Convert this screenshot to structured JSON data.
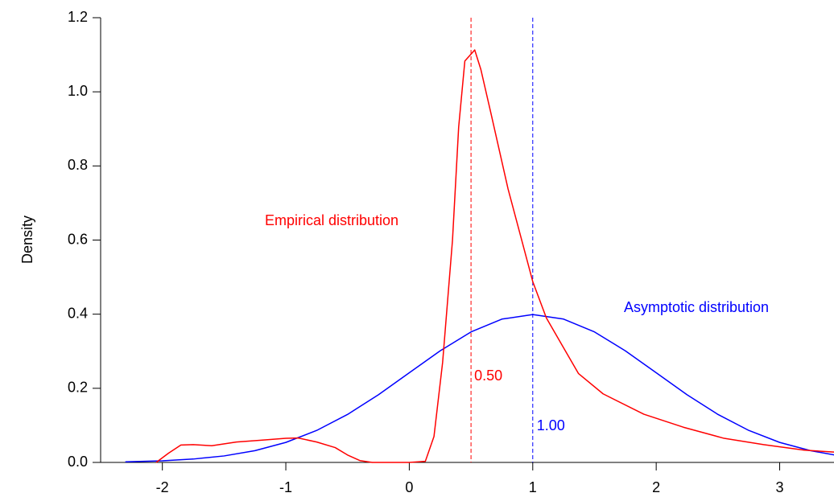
{
  "chart_data": {
    "type": "line",
    "y_label": "Density",
    "xlim": [
      -2.5,
      3.44
    ],
    "ylim": [
      0,
      1.2
    ],
    "xticks": [
      -2,
      -1,
      0,
      1,
      2,
      3
    ],
    "yticks": [
      {
        "value": 0,
        "label": "0.0"
      },
      0.2,
      0.4,
      0.6,
      0.8,
      {
        "value": 1,
        "label": "1.0"
      },
      1.2
    ],
    "series": [
      {
        "name": "Empirical distribution",
        "color": "#ff0000",
        "x": [
          -2.05,
          -1.95,
          -1.85,
          -1.75,
          -1.6,
          -1.4,
          -1.2,
          -1.0,
          -0.9,
          -0.75,
          -0.6,
          -0.5,
          -0.4,
          -0.3,
          0.0,
          0.13,
          0.2,
          0.27,
          0.35,
          0.4,
          0.45,
          0.53,
          0.58,
          0.66,
          0.8,
          1.0,
          1.11,
          1.24,
          1.37,
          1.57,
          1.9,
          2.22,
          2.55,
          2.87,
          3.2,
          3.44
        ],
        "values": [
          0.0,
          0.025,
          0.047,
          0.048,
          0.045,
          0.055,
          0.06,
          0.065,
          0.066,
          0.055,
          0.04,
          0.02,
          0.005,
          0.0,
          0.0,
          0.003,
          0.07,
          0.27,
          0.6,
          0.905,
          1.083,
          1.113,
          1.06,
          0.944,
          0.738,
          0.488,
          0.39,
          0.315,
          0.24,
          0.185,
          0.13,
          0.095,
          0.065,
          0.048,
          0.033,
          0.028
        ]
      },
      {
        "name": "Asymptotic distribution",
        "color": "#0000ff",
        "x": [
          -2.3,
          -2,
          -1.75,
          -1.5,
          -1.25,
          -1,
          -0.75,
          -0.5,
          -0.25,
          0,
          0.25,
          0.5,
          0.75,
          1,
          1.25,
          1.5,
          1.75,
          2,
          2.25,
          2.5,
          2.75,
          3,
          3.25,
          3.45
        ],
        "values": [
          0.0017,
          0.0044,
          0.0091,
          0.0175,
          0.0317,
          0.054,
          0.0863,
          0.1295,
          0.1826,
          0.242,
          0.3011,
          0.3521,
          0.3867,
          0.3989,
          0.3867,
          0.3521,
          0.3011,
          0.242,
          0.1826,
          0.1295,
          0.0863,
          0.054,
          0.0317,
          0.0198
        ]
      }
    ],
    "vlines": [
      {
        "x": 0.5,
        "label": "0.50",
        "color": "#ff0000"
      },
      {
        "x": 1.0,
        "label": "1.00",
        "color": "#0000ff"
      }
    ]
  }
}
